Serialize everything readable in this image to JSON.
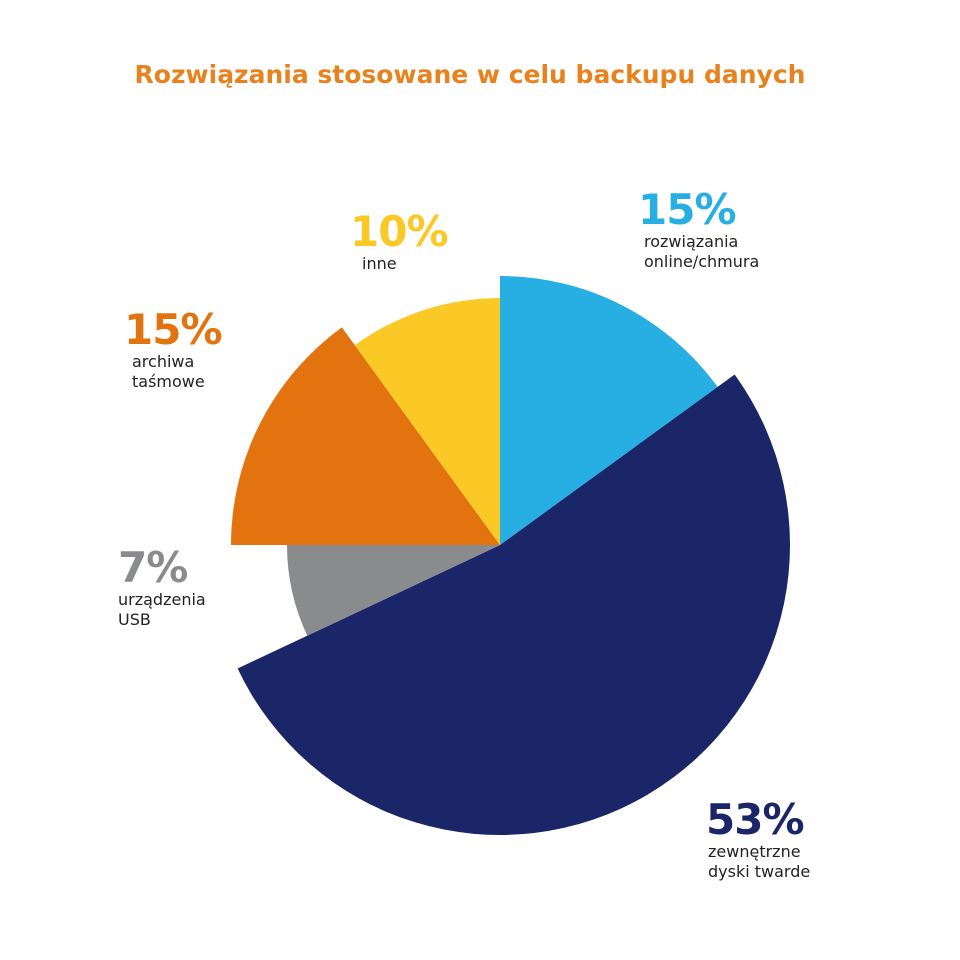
{
  "chart_data": {
    "type": "pie",
    "title": "Rozwiązania stosowane w celu backupu danych",
    "start": "top",
    "direction": "clockwise",
    "slices": [
      {
        "label": "rozwiązania online/chmura",
        "value": 15,
        "pct_label": "15%",
        "color": "#27aee2",
        "exploded_radius": "medium"
      },
      {
        "label": "zewnętrzne dyski twarde",
        "value": 53,
        "pct_label": "53%",
        "color": "#1a2668",
        "exploded_radius": "largest"
      },
      {
        "label": "urządzenia USB",
        "value": 7,
        "pct_label": "7%",
        "color": "#8a8b8d",
        "exploded_radius": "smallest"
      },
      {
        "label": "archiwa taśmowe",
        "value": 15,
        "pct_label": "15%",
        "color": "#e2730e",
        "exploded_radius": "medium"
      },
      {
        "label": "inne",
        "value": 10,
        "pct_label": "10%",
        "color": "#fbc926",
        "exploded_radius": "small"
      }
    ]
  }
}
